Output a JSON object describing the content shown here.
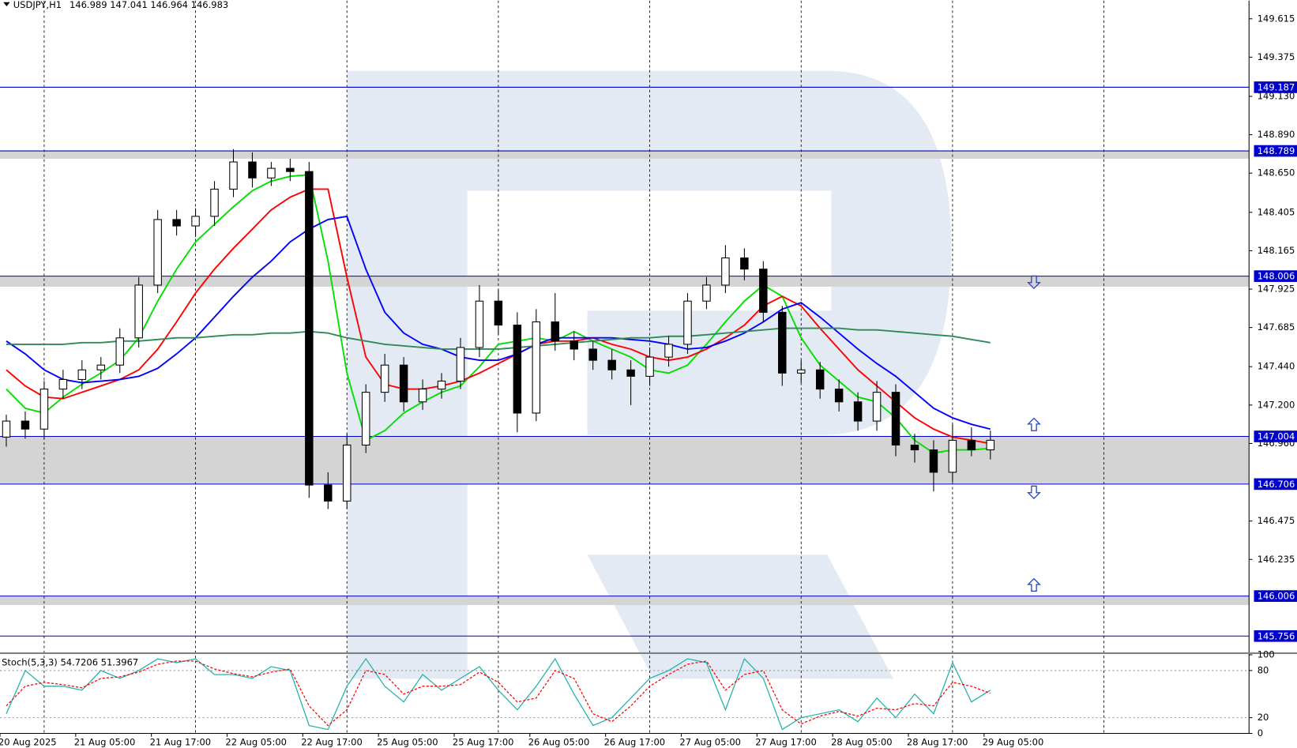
{
  "chart_data": [
    {
      "type": "candlestick",
      "symbol": "USDJPY,H1",
      "quote": [
        146.989,
        147.041,
        146.964,
        146.983
      ],
      "x": [
        1,
        4,
        7,
        10,
        13,
        16,
        19,
        22,
        25,
        28,
        31,
        34,
        37,
        40,
        43,
        46,
        49,
        52,
        55,
        58,
        61,
        64,
        67,
        70,
        73,
        76,
        79,
        82,
        85,
        88,
        91,
        94,
        97,
        100,
        103,
        106,
        109,
        112,
        115,
        118,
        121,
        124,
        127,
        130,
        133,
        136,
        139,
        142,
        145,
        148,
        151,
        154,
        157
      ],
      "open": [
        147.0,
        147.1,
        147.05,
        147.3,
        147.36,
        147.42,
        147.45,
        147.62,
        147.95,
        148.36,
        148.32,
        148.38,
        148.55,
        148.72,
        148.62,
        148.68,
        148.66,
        146.7,
        146.6,
        146.95,
        147.28,
        147.45,
        147.22,
        147.3,
        147.35,
        147.56,
        147.85,
        147.7,
        147.15,
        147.72,
        147.6,
        147.55,
        147.48,
        147.42,
        147.38,
        147.5,
        147.58,
        147.85,
        147.95,
        148.12,
        148.05,
        147.78,
        147.4,
        147.42,
        147.3,
        147.22,
        147.1,
        147.28,
        146.95,
        146.92,
        146.78,
        146.98,
        146.92
      ],
      "high": [
        147.14,
        147.16,
        147.35,
        147.42,
        147.48,
        147.5,
        147.68,
        148.0,
        148.42,
        148.42,
        148.43,
        148.6,
        148.8,
        148.78,
        148.72,
        148.74,
        148.72,
        146.78,
        147.02,
        147.33,
        147.52,
        147.5,
        147.36,
        147.4,
        147.62,
        147.95,
        147.92,
        147.78,
        147.8,
        147.9,
        147.66,
        147.6,
        147.55,
        147.48,
        147.56,
        147.63,
        147.9,
        148.0,
        148.2,
        148.18,
        148.1,
        147.82,
        147.48,
        147.47,
        147.36,
        147.28,
        147.35,
        147.33,
        147.02,
        146.98,
        147.08,
        147.06,
        147.04
      ],
      "low": [
        146.94,
        146.99,
        146.99,
        147.24,
        147.3,
        147.36,
        147.4,
        147.56,
        147.9,
        148.26,
        148.25,
        148.32,
        148.5,
        148.56,
        148.57,
        148.6,
        146.62,
        146.55,
        146.55,
        146.9,
        147.22,
        147.16,
        147.17,
        147.24,
        147.3,
        147.5,
        147.64,
        147.03,
        147.1,
        147.54,
        147.48,
        147.42,
        147.36,
        147.2,
        147.32,
        147.44,
        147.52,
        147.8,
        147.9,
        147.98,
        147.72,
        147.32,
        147.34,
        147.24,
        147.16,
        147.04,
        147.04,
        146.88,
        146.84,
        146.66,
        146.72,
        146.88,
        146.86
      ],
      "close": [
        147.1,
        147.05,
        147.3,
        147.36,
        147.42,
        147.45,
        147.62,
        147.95,
        148.36,
        148.32,
        148.38,
        148.55,
        148.72,
        148.62,
        148.68,
        148.66,
        146.7,
        146.6,
        146.95,
        147.28,
        147.45,
        147.22,
        147.3,
        147.35,
        147.56,
        147.85,
        147.7,
        147.15,
        147.72,
        147.6,
        147.55,
        147.48,
        147.42,
        147.38,
        147.5,
        147.58,
        147.85,
        147.95,
        148.12,
        148.05,
        147.78,
        147.4,
        147.42,
        147.3,
        147.22,
        147.1,
        147.28,
        146.95,
        146.92,
        146.78,
        146.98,
        146.92,
        146.98
      ],
      "up_color": "#ffffff",
      "down_color": "#000000",
      "series": [
        {
          "color": "#00e000",
          "values": [
            147.3,
            147.18,
            147.15,
            147.25,
            147.33,
            147.4,
            147.48,
            147.62,
            147.85,
            148.05,
            148.22,
            148.33,
            148.44,
            148.54,
            148.6,
            148.63,
            148.64,
            148.1,
            147.4,
            146.98,
            147.04,
            147.15,
            147.22,
            147.28,
            147.32,
            147.44,
            147.58,
            147.6,
            147.62,
            147.6,
            147.66,
            147.6,
            147.55,
            147.5,
            147.42,
            147.4,
            147.45,
            147.58,
            147.72,
            147.85,
            147.95,
            147.88,
            147.62,
            147.45,
            147.35,
            147.25,
            147.22,
            147.12,
            146.98,
            146.9,
            146.92,
            146.92,
            146.93
          ]
        },
        {
          "color": "#ff0000",
          "values": [
            147.42,
            147.32,
            147.25,
            147.24,
            147.28,
            147.32,
            147.36,
            147.42,
            147.55,
            147.72,
            147.9,
            148.05,
            148.18,
            148.3,
            148.42,
            148.5,
            148.55,
            148.55,
            148.0,
            147.5,
            147.33,
            147.3,
            147.3,
            147.32,
            147.35,
            147.4,
            147.46,
            147.52,
            147.58,
            147.6,
            147.6,
            147.62,
            147.58,
            147.55,
            147.5,
            147.48,
            147.5,
            147.55,
            147.62,
            147.7,
            147.82,
            147.88,
            147.82,
            147.68,
            147.55,
            147.42,
            147.32,
            147.22,
            147.12,
            147.05,
            147.0,
            146.98,
            146.96
          ]
        },
        {
          "color": "#0000ff",
          "values": [
            147.6,
            147.52,
            147.42,
            147.36,
            147.34,
            147.35,
            147.36,
            147.38,
            147.43,
            147.52,
            147.62,
            147.75,
            147.88,
            148.0,
            148.1,
            148.22,
            148.3,
            148.36,
            148.38,
            148.05,
            147.78,
            147.65,
            147.58,
            147.55,
            147.5,
            147.48,
            147.48,
            147.52,
            147.58,
            147.62,
            147.62,
            147.62,
            147.62,
            147.61,
            147.6,
            147.58,
            147.55,
            147.56,
            147.6,
            147.65,
            147.72,
            147.8,
            147.84,
            147.75,
            147.65,
            147.55,
            147.46,
            147.38,
            147.28,
            147.18,
            147.12,
            147.08,
            147.05
          ]
        },
        {
          "color": "#2e8b57",
          "values": [
            147.58,
            147.58,
            147.58,
            147.58,
            147.59,
            147.59,
            147.6,
            147.6,
            147.61,
            147.62,
            147.62,
            147.63,
            147.64,
            147.64,
            147.65,
            147.65,
            147.66,
            147.65,
            147.62,
            147.6,
            147.58,
            147.57,
            147.56,
            147.55,
            147.55,
            147.55,
            147.55,
            147.56,
            147.57,
            147.58,
            147.59,
            147.6,
            147.61,
            147.62,
            147.62,
            147.63,
            147.63,
            147.64,
            147.65,
            147.66,
            147.67,
            147.68,
            147.68,
            147.68,
            147.68,
            147.67,
            147.67,
            147.66,
            147.65,
            147.64,
            147.63,
            147.61,
            147.59
          ]
        }
      ],
      "levels": [
        149.187,
        148.789,
        148.006,
        147.004,
        146.706,
        146.006,
        145.756
      ],
      "level_color": "#0000cc",
      "zones": [
        [
          148.789,
          148.74
        ],
        [
          148.006,
          147.94
        ],
        [
          147.004,
          146.706
        ],
        [
          146.006,
          145.95
        ]
      ],
      "zone_color": "#d4d4d4",
      "xlim": [
        0,
        198
      ],
      "xgrid": [
        7,
        31,
        55,
        79,
        103,
        127,
        151,
        175
      ],
      "xticks": [
        {
          "value": 0,
          "label": "20 Aug 2025"
        },
        {
          "value": 12,
          "label": "21 Aug 05:00"
        },
        {
          "value": 24,
          "label": "21 Aug 17:00"
        },
        {
          "value": 36,
          "label": "22 Aug 05:00"
        },
        {
          "value": 48,
          "label": "22 Aug 17:00"
        },
        {
          "value": 60,
          "label": "25 Aug 05:00"
        },
        {
          "value": 72,
          "label": "25 Aug 17:00"
        },
        {
          "value": 84,
          "label": "26 Aug 05:00"
        },
        {
          "value": 96,
          "label": "26 Aug 17:00"
        },
        {
          "value": 108,
          "label": "27 Aug 05:00"
        },
        {
          "value": 120,
          "label": "27 Aug 17:00"
        },
        {
          "value": 132,
          "label": "28 Aug 05:00"
        },
        {
          "value": 144,
          "label": "28 Aug 17:00"
        },
        {
          "value": 156,
          "label": "29 Aug 05:00"
        }
      ],
      "ylim": [
        145.649,
        149.729
      ],
      "yticks": [
        149.615,
        149.375,
        {
          "value": 149.13,
          "label": "149.130"
        },
        {
          "value": 148.89,
          "label": "148.890"
        },
        {
          "value": 148.65,
          "label": "148.650"
        },
        148.405,
        148.165,
        147.925,
        147.685,
        {
          "value": 147.44,
          "label": "147.440"
        },
        {
          "value": 147.2,
          "label": "147.200"
        },
        {
          "value": 146.96,
          "label": "146.960"
        },
        146.475,
        146.235
      ]
    },
    {
      "type": "line",
      "title": "Stoch(5,3,3)",
      "current": [
        54.7206,
        51.3967
      ],
      "series": [
        {
          "color": "#20b2aa",
          "dashed": false,
          "values": [
            25,
            80,
            60,
            60,
            55,
            80,
            70,
            80,
            95,
            90,
            95,
            75,
            75,
            70,
            85,
            80,
            10,
            5,
            60,
            95,
            60,
            40,
            75,
            55,
            70,
            85,
            55,
            30,
            60,
            95,
            50,
            10,
            20,
            45,
            70,
            80,
            95,
            90,
            30,
            95,
            70,
            5,
            20,
            25,
            30,
            15,
            45,
            20,
            50,
            25,
            90,
            40,
            55
          ]
        },
        {
          "color": "#ff0000",
          "dashed": true,
          "values": [
            35,
            60,
            65,
            62,
            58,
            70,
            72,
            78,
            88,
            92,
            92,
            82,
            76,
            72,
            78,
            82,
            35,
            10,
            30,
            80,
            75,
            50,
            60,
            60,
            62,
            78,
            65,
            40,
            45,
            80,
            70,
            25,
            15,
            35,
            60,
            75,
            88,
            92,
            55,
            75,
            80,
            30,
            12,
            22,
            28,
            22,
            32,
            30,
            38,
            35,
            65,
            60,
            51
          ]
        }
      ],
      "ylim": [
        0,
        100
      ],
      "yticks": [
        0,
        20,
        80,
        100
      ]
    }
  ]
}
